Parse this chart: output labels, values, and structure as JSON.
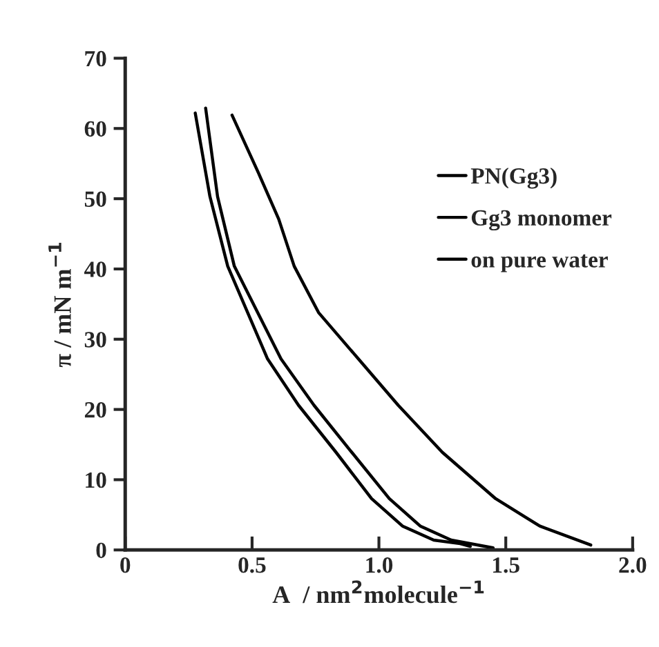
{
  "chart_data": {
    "type": "line",
    "xlabel": "A  / nm$^{2}$molecule$^{−1}$",
    "ylabel": "π / mN m$^{−1}$",
    "xlim": [
      0,
      2.0
    ],
    "xticks": [
      0,
      0.5,
      {
        "value": 1.0,
        "label": "1.0"
      },
      1.5,
      {
        "value": 2.0,
        "label": "2.0"
      }
    ],
    "ylim": [
      0,
      70
    ],
    "yticks": [
      0,
      10,
      20,
      30,
      40,
      50,
      60,
      70
    ],
    "grid": false,
    "legend": "top right",
    "marker": "none",
    "line_style": "solid",
    "series": [
      {
        "name": "PN(Gg3)",
        "color": "#000000",
        "x": [
          0.276,
          0.334,
          0.404,
          0.561,
          0.683,
          0.831,
          0.971,
          1.093,
          1.216,
          1.32,
          1.36
        ],
        "values": [
          62.2,
          50.3,
          40.4,
          27.2,
          20.6,
          13.9,
          7.3,
          3.4,
          1.4,
          0.9,
          0.5
        ]
      },
      {
        "name": "Gg3 monomer",
        "color": "#000000",
        "x": [
          0.317,
          0.364,
          0.43,
          0.614,
          0.744,
          0.893,
          1.041,
          1.163,
          1.285,
          1.45
        ],
        "values": [
          62.9,
          50.3,
          40.4,
          27.2,
          20.6,
          13.9,
          7.3,
          3.4,
          1.4,
          0.3
        ]
      },
      {
        "name": "on pure water",
        "color": "#000000",
        "x": [
          0.421,
          0.526,
          0.605,
          0.666,
          0.762,
          0.919,
          1.076,
          1.25,
          1.46,
          1.634,
          1.835
        ],
        "values": [
          61.9,
          53.6,
          47.1,
          40.4,
          33.8,
          27.2,
          20.6,
          13.9,
          7.3,
          3.4,
          0.7
        ]
      }
    ]
  }
}
